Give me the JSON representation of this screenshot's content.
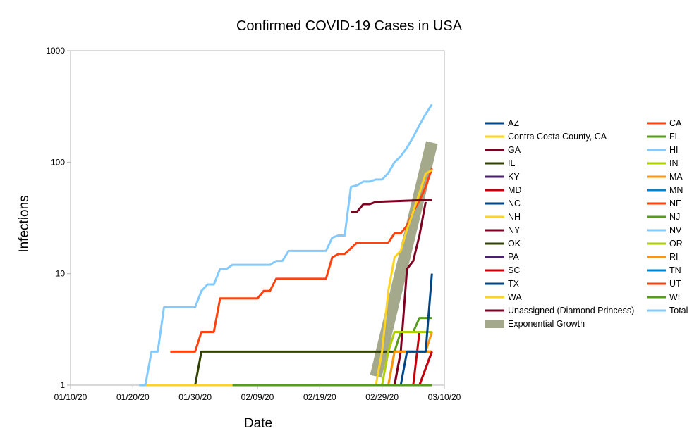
{
  "chart_data": {
    "type": "line",
    "title": "Confirmed COVID-19 Cases in USA",
    "xlabel": "Date",
    "ylabel": "Infections",
    "yscale": "log",
    "ylim": [
      1,
      1000
    ],
    "xlim": [
      "2020-01-10",
      "2020-03-10"
    ],
    "x_ticks": [
      "01/10/20",
      "01/20/20",
      "01/30/20",
      "02/09/20",
      "02/19/20",
      "02/29/20",
      "03/10/20"
    ],
    "y_ticks": [
      "1",
      "10",
      "100",
      "1000"
    ],
    "grid": false,
    "legend_position": "right",
    "series": [
      {
        "name": "AZ",
        "color": "#004586",
        "points": [
          [
            "2020-01-26",
            1
          ],
          [
            "2020-03-08",
            1
          ]
        ]
      },
      {
        "name": "CA",
        "color": "#ff420e",
        "points": [
          [
            "2020-01-26",
            2
          ],
          [
            "2020-01-30",
            2
          ],
          [
            "2020-01-31",
            3
          ],
          [
            "2020-02-02",
            3
          ],
          [
            "2020-02-03",
            6
          ],
          [
            "2020-02-09",
            6
          ],
          [
            "2020-02-10",
            7
          ],
          [
            "2020-02-11",
            7
          ],
          [
            "2020-02-12",
            9
          ],
          [
            "2020-02-20",
            9
          ],
          [
            "2020-02-21",
            14
          ],
          [
            "2020-02-22",
            15
          ],
          [
            "2020-02-23",
            15
          ],
          [
            "2020-02-25",
            19
          ],
          [
            "2020-03-01",
            19
          ],
          [
            "2020-03-02",
            23
          ],
          [
            "2020-03-03",
            23
          ],
          [
            "2020-03-04",
            27
          ],
          [
            "2020-03-05",
            36
          ],
          [
            "2020-03-06",
            45
          ],
          [
            "2020-03-07",
            60
          ],
          [
            "2020-03-08",
            88
          ]
        ]
      },
      {
        "name": "Contra Costa County, CA",
        "color": "#ffd320",
        "points": [
          [
            "2020-03-06",
            1
          ],
          [
            "2020-03-08",
            1
          ]
        ]
      },
      {
        "name": "FL",
        "color": "#579d1c",
        "points": [
          [
            "2020-03-01",
            1
          ],
          [
            "2020-03-02",
            2
          ],
          [
            "2020-03-03",
            3
          ],
          [
            "2020-03-05",
            3
          ],
          [
            "2020-03-06",
            4
          ],
          [
            "2020-03-08",
            4
          ]
        ]
      },
      {
        "name": "GA",
        "color": "#7e0021",
        "points": [
          [
            "2020-03-02",
            1
          ],
          [
            "2020-03-03",
            2
          ],
          [
            "2020-03-06",
            2
          ],
          [
            "2020-03-07",
            2
          ],
          [
            "2020-03-08",
            2
          ]
        ]
      },
      {
        "name": "HI",
        "color": "#83caff",
        "points": [
          [
            "2020-03-06",
            1
          ],
          [
            "2020-03-08",
            1
          ]
        ]
      },
      {
        "name": "IL",
        "color": "#314004",
        "points": [
          [
            "2020-01-24",
            1
          ],
          [
            "2020-01-30",
            1
          ],
          [
            "2020-01-31",
            2
          ],
          [
            "2020-02-29",
            2
          ],
          [
            "2020-03-08",
            2
          ]
        ]
      },
      {
        "name": "IN",
        "color": "#aecf00",
        "points": [
          [
            "2020-03-06",
            1
          ],
          [
            "2020-03-08",
            1
          ]
        ]
      },
      {
        "name": "KY",
        "color": "#4b1f6f",
        "points": [
          [
            "2020-03-06",
            1
          ],
          [
            "2020-03-08",
            1
          ]
        ]
      },
      {
        "name": "MA",
        "color": "#ff950e",
        "points": [
          [
            "2020-02-01",
            1
          ],
          [
            "2020-03-02",
            1
          ],
          [
            "2020-03-03",
            2
          ],
          [
            "2020-03-07",
            2
          ],
          [
            "2020-03-08",
            3
          ]
        ]
      },
      {
        "name": "MD",
        "color": "#c5000b",
        "points": [
          [
            "2020-03-05",
            1
          ],
          [
            "2020-03-06",
            3
          ],
          [
            "2020-03-08",
            3
          ]
        ]
      },
      {
        "name": "MN",
        "color": "#0084d1",
        "points": [
          [
            "2020-03-06",
            1
          ],
          [
            "2020-03-08",
            1
          ]
        ]
      },
      {
        "name": "NC",
        "color": "#004586",
        "points": [
          [
            "2020-03-03",
            1
          ],
          [
            "2020-03-08",
            1
          ]
        ]
      },
      {
        "name": "NE",
        "color": "#ff420e",
        "points": [
          [
            "2020-03-06",
            1
          ],
          [
            "2020-03-08",
            1
          ]
        ]
      },
      {
        "name": "NH",
        "color": "#ffd320",
        "points": [
          [
            "2020-03-01",
            1
          ],
          [
            "2020-03-02",
            2
          ],
          [
            "2020-03-08",
            2
          ]
        ]
      },
      {
        "name": "NJ",
        "color": "#579d1c",
        "points": [
          [
            "2020-03-04",
            1
          ],
          [
            "2020-03-08",
            1
          ]
        ]
      },
      {
        "name": "NY",
        "color": "#7e0021",
        "points": [
          [
            "2020-03-01",
            1
          ],
          [
            "2020-03-02",
            1
          ],
          [
            "2020-03-03",
            2
          ],
          [
            "2020-03-04",
            11
          ],
          [
            "2020-03-05",
            13
          ],
          [
            "2020-03-06",
            22
          ],
          [
            "2020-03-07",
            44
          ]
        ]
      },
      {
        "name": "NV",
        "color": "#83caff",
        "points": [
          [
            "2020-03-05",
            1
          ],
          [
            "2020-03-08",
            1
          ]
        ]
      },
      {
        "name": "OK",
        "color": "#314004",
        "points": [
          [
            "2020-03-06",
            1
          ],
          [
            "2020-03-08",
            1
          ]
        ]
      },
      {
        "name": "OR",
        "color": "#aecf00",
        "points": [
          [
            "2020-02-29",
            1
          ],
          [
            "2020-03-01",
            2
          ],
          [
            "2020-03-02",
            3
          ],
          [
            "2020-03-08",
            3
          ]
        ]
      },
      {
        "name": "PA",
        "color": "#4b1f6f",
        "points": [
          [
            "2020-03-06",
            1
          ],
          [
            "2020-03-08",
            2
          ]
        ]
      },
      {
        "name": "RI",
        "color": "#ff950e",
        "points": [
          [
            "2020-03-01",
            1
          ],
          [
            "2020-03-02",
            2
          ],
          [
            "2020-03-08",
            2
          ]
        ]
      },
      {
        "name": "SC",
        "color": "#c5000b",
        "points": [
          [
            "2020-03-06",
            1
          ],
          [
            "2020-03-08",
            2
          ]
        ]
      },
      {
        "name": "TN",
        "color": "#0084d1",
        "points": [
          [
            "2020-03-05",
            1
          ],
          [
            "2020-03-08",
            1
          ]
        ]
      },
      {
        "name": "TX",
        "color": "#004586",
        "points": [
          [
            "2020-02-12",
            1
          ],
          [
            "2020-03-03",
            1
          ],
          [
            "2020-03-04",
            2
          ],
          [
            "2020-03-06",
            2
          ],
          [
            "2020-03-07",
            2
          ],
          [
            "2020-03-08",
            10
          ]
        ]
      },
      {
        "name": "UT",
        "color": "#ff420e",
        "points": [
          [
            "2020-03-06",
            1
          ],
          [
            "2020-03-08",
            1
          ]
        ]
      },
      {
        "name": "WA",
        "color": "#ffd320",
        "points": [
          [
            "2020-01-21",
            1
          ],
          [
            "2020-02-28",
            1
          ],
          [
            "2020-02-29",
            2
          ],
          [
            "2020-03-01",
            7
          ],
          [
            "2020-03-02",
            14
          ],
          [
            "2020-03-03",
            16
          ],
          [
            "2020-03-04",
            25
          ],
          [
            "2020-03-05",
            36
          ],
          [
            "2020-03-06",
            53
          ],
          [
            "2020-03-07",
            79
          ],
          [
            "2020-03-08",
            85
          ]
        ]
      },
      {
        "name": "WI",
        "color": "#579d1c",
        "points": [
          [
            "2020-02-05",
            1
          ],
          [
            "2020-03-08",
            1
          ]
        ]
      },
      {
        "name": "Unassigned (Diamond Princess)",
        "color": "#7e0021",
        "points": [
          [
            "2020-02-24",
            36
          ],
          [
            "2020-02-25",
            36
          ],
          [
            "2020-02-26",
            42
          ],
          [
            "2020-02-27",
            42
          ],
          [
            "2020-02-28",
            44
          ],
          [
            "2020-03-08",
            46
          ]
        ]
      },
      {
        "name": "Total",
        "color": "#83caff",
        "points": [
          [
            "2020-01-21",
            1
          ],
          [
            "2020-01-22",
            1
          ],
          [
            "2020-01-23",
            2
          ],
          [
            "2020-01-24",
            2
          ],
          [
            "2020-01-25",
            5
          ],
          [
            "2020-01-30",
            5
          ],
          [
            "2020-01-31",
            7
          ],
          [
            "2020-02-01",
            8
          ],
          [
            "2020-02-02",
            8
          ],
          [
            "2020-02-03",
            11
          ],
          [
            "2020-02-04",
            11
          ],
          [
            "2020-02-05",
            12
          ],
          [
            "2020-02-11",
            12
          ],
          [
            "2020-02-12",
            13
          ],
          [
            "2020-02-13",
            13
          ],
          [
            "2020-02-14",
            16
          ],
          [
            "2020-02-20",
            16
          ],
          [
            "2020-02-21",
            21
          ],
          [
            "2020-02-22",
            22
          ],
          [
            "2020-02-23",
            22
          ],
          [
            "2020-02-24",
            60
          ],
          [
            "2020-02-25",
            62
          ],
          [
            "2020-02-26",
            67
          ],
          [
            "2020-02-27",
            67
          ],
          [
            "2020-02-28",
            70
          ],
          [
            "2020-02-29",
            70
          ],
          [
            "2020-03-01",
            80
          ],
          [
            "2020-03-02",
            100
          ],
          [
            "2020-03-03",
            113
          ],
          [
            "2020-03-04",
            135
          ],
          [
            "2020-03-05",
            168
          ],
          [
            "2020-03-06",
            215
          ],
          [
            "2020-03-07",
            270
          ],
          [
            "2020-03-08",
            330
          ]
        ]
      },
      {
        "name": "Exponential Growth",
        "color": "#a4a98c",
        "band": true,
        "points": [
          [
            "2020-02-28",
            1.2
          ],
          [
            "2020-03-08",
            150
          ]
        ]
      }
    ]
  }
}
